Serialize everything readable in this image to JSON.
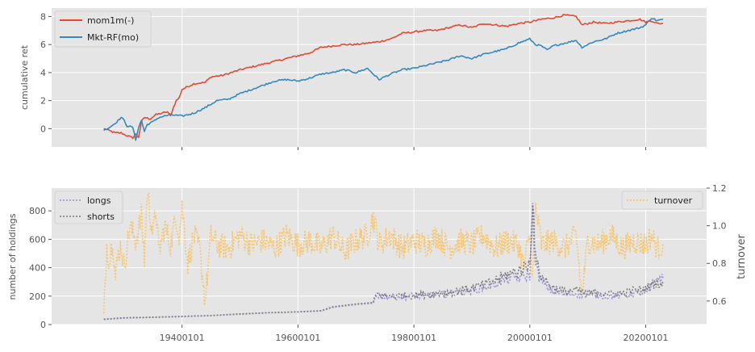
{
  "chart_data": [
    {
      "type": "line",
      "title": "",
      "ylabel": "cumulative ret",
      "xlim": [
        1917.5,
        2030.5
      ],
      "ylim": [
        -1.3,
        8.6
      ],
      "yticks": [
        0,
        2,
        4,
        6,
        8
      ],
      "grid": true,
      "legend": "upper left",
      "series": [
        {
          "name": "mom1m(-)",
          "color": "#e24a33",
          "x": [
            1926.5,
            1927.5,
            1928.5,
            1929.5,
            1930.5,
            1931.5,
            1932.0,
            1932.5,
            1933.0,
            1933.5,
            1934.5,
            1935.5,
            1936.5,
            1937.5,
            1938.0,
            1938.5,
            1939.0,
            1939.5,
            1940.0,
            1942,
            1944,
            1945,
            1947,
            1950,
            1952,
            1955,
            1957,
            1960,
            1962,
            1964,
            1966,
            1968,
            1970,
            1972,
            1974,
            1976,
            1978,
            1980,
            1982,
            1984,
            1986,
            1988,
            1990,
            1992,
            1994,
            1996,
            1998,
            2000,
            2002,
            2004,
            2006,
            2008,
            2009,
            2011,
            2013,
            2015,
            2017,
            2019,
            2020,
            2021,
            2022,
            2023
          ],
          "y": [
            0.0,
            -0.15,
            -0.3,
            -0.3,
            -0.5,
            -0.65,
            -0.4,
            -0.6,
            0.5,
            0.8,
            0.7,
            1.0,
            1.1,
            1.2,
            0.9,
            1.5,
            2.0,
            2.2,
            2.8,
            3.2,
            3.3,
            3.7,
            3.8,
            4.2,
            4.4,
            4.7,
            4.9,
            5.2,
            5.4,
            5.8,
            5.9,
            6.0,
            6.0,
            6.1,
            6.2,
            6.4,
            6.8,
            6.9,
            7.0,
            7.0,
            7.2,
            7.4,
            7.2,
            7.5,
            7.4,
            7.3,
            7.5,
            7.6,
            7.8,
            7.9,
            8.1,
            8.0,
            7.4,
            7.6,
            7.5,
            7.6,
            7.7,
            7.8,
            7.6,
            7.7,
            7.5,
            7.5
          ]
        },
        {
          "name": "Mkt-RF(mo)",
          "color": "#348abd",
          "x": [
            1926.5,
            1927.5,
            1928.5,
            1929.5,
            1930.0,
            1930.5,
            1931.5,
            1932.0,
            1932.5,
            1933.0,
            1933.5,
            1934,
            1935,
            1936,
            1937,
            1938,
            1940,
            1942,
            1944,
            1946,
            1948,
            1950,
            1952,
            1954,
            1956,
            1958,
            1960,
            1962,
            1964,
            1966,
            1968,
            1970,
            1972,
            1974,
            1976,
            1978,
            1980,
            1982,
            1984,
            1986,
            1988,
            1990,
            1992,
            1994,
            1996,
            1998,
            2000,
            2001,
            2002,
            2003,
            2004,
            2006,
            2008,
            2009,
            2011,
            2013,
            2015,
            2017,
            2019,
            2020,
            2021,
            2022,
            2023
          ],
          "y": [
            -0.1,
            0.1,
            0.4,
            0.8,
            0.6,
            0.2,
            0.1,
            -0.8,
            0.1,
            0.6,
            -0.2,
            0.3,
            0.5,
            0.8,
            0.9,
            1.0,
            0.9,
            1.1,
            1.5,
            2.0,
            2.1,
            2.5,
            2.8,
            3.1,
            3.4,
            3.5,
            3.4,
            3.6,
            3.9,
            4.0,
            4.2,
            4.0,
            4.3,
            3.5,
            3.9,
            4.2,
            4.3,
            4.5,
            4.7,
            4.9,
            5.2,
            5.0,
            5.3,
            5.5,
            5.7,
            6.1,
            6.4,
            6.0,
            5.9,
            5.6,
            5.9,
            6.1,
            6.3,
            5.8,
            6.2,
            6.4,
            6.8,
            7.0,
            7.2,
            7.4,
            7.9,
            7.7,
            7.8
          ]
        }
      ]
    },
    {
      "type": "line",
      "title": "",
      "xlabel": "",
      "ylabel": "number of holdings",
      "ylabel_right": "turnover",
      "xlim": [
        1917.5,
        2030.5
      ],
      "ylim": [
        0,
        960
      ],
      "ylim_right": [
        0.475,
        1.2
      ],
      "yticks": [
        0,
        200,
        400,
        600,
        800
      ],
      "yticks_right": [
        0.6,
        0.8,
        1.0,
        1.2
      ],
      "xticks": [
        1940,
        1960,
        1980,
        2000,
        2020
      ],
      "xtick_labels": [
        "19400101",
        "19600101",
        "19800101",
        "20000101",
        "20200101"
      ],
      "grid": true,
      "series": [
        {
          "name": "longs",
          "color": "#988ed5",
          "axis": "left",
          "x": [
            1926.5,
            1930,
            1935,
            1940,
            1945,
            1950,
            1955,
            1960,
            1964,
            1966,
            1970,
            1973,
            1973.5,
            1975,
            1980,
            1985,
            1990,
            1993,
            1996,
            1998,
            2000,
            2000.5,
            2001,
            2002,
            2004,
            2006,
            2008,
            2010,
            2012,
            2014,
            2016,
            2018,
            2020,
            2021,
            2022,
            2023
          ],
          "y": [
            35,
            45,
            50,
            55,
            62,
            72,
            82,
            88,
            95,
            120,
            140,
            150,
            210,
            195,
            200,
            215,
            240,
            270,
            320,
            330,
            350,
            780,
            400,
            300,
            230,
            210,
            220,
            205,
            210,
            200,
            205,
            220,
            225,
            260,
            330,
            320
          ]
        },
        {
          "name": "shorts",
          "color": "#777777",
          "axis": "left",
          "x": [
            1926.5,
            1930,
            1935,
            1940,
            1945,
            1950,
            1955,
            1960,
            1964,
            1966,
            1970,
            1973,
            1973.5,
            1975,
            1980,
            1985,
            1990,
            1993,
            1996,
            1998,
            2000,
            2000.5,
            2001,
            2002,
            2004,
            2006,
            2008,
            2010,
            2012,
            2014,
            2016,
            2018,
            2020,
            2021,
            2022,
            2023
          ],
          "y": [
            38,
            48,
            52,
            58,
            64,
            75,
            84,
            90,
            98,
            125,
            145,
            155,
            215,
            200,
            205,
            220,
            255,
            290,
            350,
            380,
            420,
            920,
            450,
            340,
            260,
            230,
            240,
            220,
            230,
            215,
            220,
            240,
            250,
            280,
            300,
            280
          ]
        },
        {
          "name": "turnover",
          "color": "#fbc15e",
          "axis": "right",
          "x": [
            1926.5,
            1927,
            1927.5,
            1928,
            1928.5,
            1929,
            1929.5,
            1930,
            1931,
            1932,
            1933,
            1933.5,
            1934,
            1935,
            1935.5,
            1936,
            1937,
            1938,
            1939,
            1939.5,
            1940,
            1941,
            1942,
            1943,
            1944,
            1945,
            1946,
            1948,
            1950,
            1952,
            1954,
            1956,
            1958,
            1960,
            1962,
            1964,
            1966,
            1968,
            1970,
            1972,
            1973,
            1974,
            1976,
            1978,
            1980,
            1982,
            1984,
            1986,
            1988,
            1990,
            1992,
            1994,
            1996,
            1998,
            1999,
            2000,
            2000.5,
            2001,
            2002,
            2004,
            2006,
            2008,
            2009,
            2010,
            2012,
            2014,
            2016,
            2018,
            2020,
            2021,
            2022,
            2023
          ],
          "y": [
            0.5,
            0.9,
            0.8,
            0.95,
            0.72,
            0.85,
            0.9,
            0.78,
            1.0,
            0.92,
            1.05,
            0.82,
            1.18,
            0.95,
            1.1,
            0.85,
            1.0,
            0.9,
            1.05,
            0.95,
            1.1,
            0.8,
            0.95,
            0.88,
            0.6,
            0.95,
            0.9,
            0.88,
            0.95,
            0.9,
            0.92,
            0.88,
            0.95,
            0.9,
            0.92,
            0.88,
            0.95,
            0.86,
            0.92,
            0.95,
            1.05,
            0.9,
            0.95,
            0.88,
            0.92,
            0.9,
            0.95,
            0.88,
            0.92,
            0.9,
            0.95,
            0.88,
            0.92,
            0.9,
            0.78,
            0.95,
            0.72,
            1.1,
            0.9,
            0.92,
            0.88,
            0.95,
            0.62,
            0.92,
            0.9,
            0.95,
            0.88,
            0.92,
            0.9,
            0.95,
            0.88,
            0.9
          ]
        }
      ]
    }
  ]
}
